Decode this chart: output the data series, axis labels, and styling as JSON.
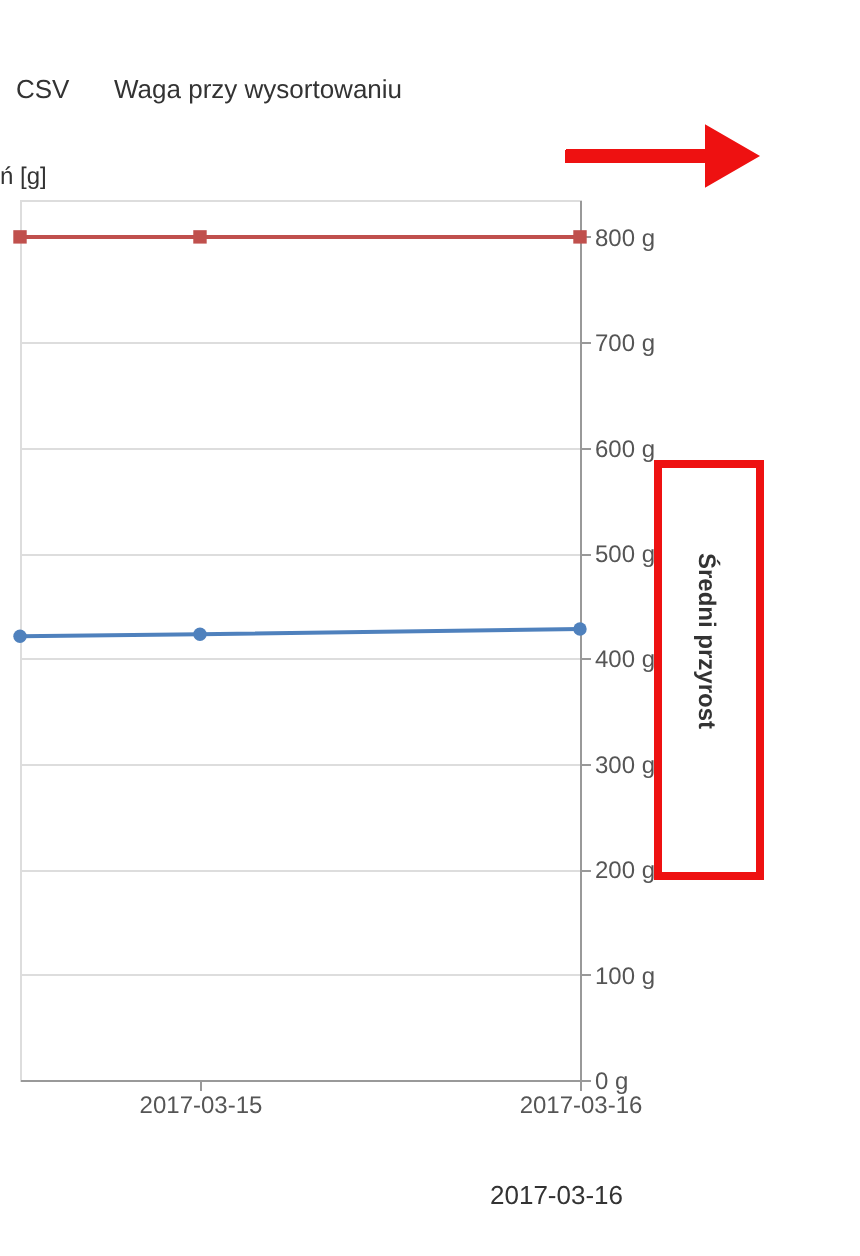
{
  "chart_data": {
    "type": "line",
    "title": "ń [g]",
    "ylabel": "Średni przyrost",
    "x": [
      "2017-03-14T12:38",
      "2017-03-15",
      "2017-03-16"
    ],
    "series": [
      {
        "color": "#c0504d",
        "marker": "square",
        "values": [
          800,
          800,
          800
        ]
      },
      {
        "color": "#4f81bd",
        "marker": "circle",
        "values": [
          421,
          423,
          428
        ]
      }
    ],
    "xlim": [
      "2017-03-14T12:38",
      "2017-03-16"
    ],
    "xticks": [
      "2017-03-15",
      "2017-03-16"
    ],
    "ylim": [
      0,
      835
    ],
    "yticks": [
      {
        "value": 0,
        "label": "0 g"
      },
      {
        "value": 100,
        "label": "100 g"
      },
      {
        "value": 200,
        "label": "200 g"
      },
      {
        "value": 300,
        "label": "300 g"
      },
      {
        "value": 400,
        "label": "400 g"
      },
      {
        "value": 500,
        "label": "500 g"
      },
      {
        "value": 600,
        "label": "600 g"
      },
      {
        "value": 700,
        "label": "700 g"
      },
      {
        "value": 800,
        "label": "800 g"
      }
    ],
    "grid": "y",
    "line_style": "solid",
    "annotations": [
      "CSV",
      "Waga przy wysortowaniu",
      "2017-03-16"
    ]
  }
}
